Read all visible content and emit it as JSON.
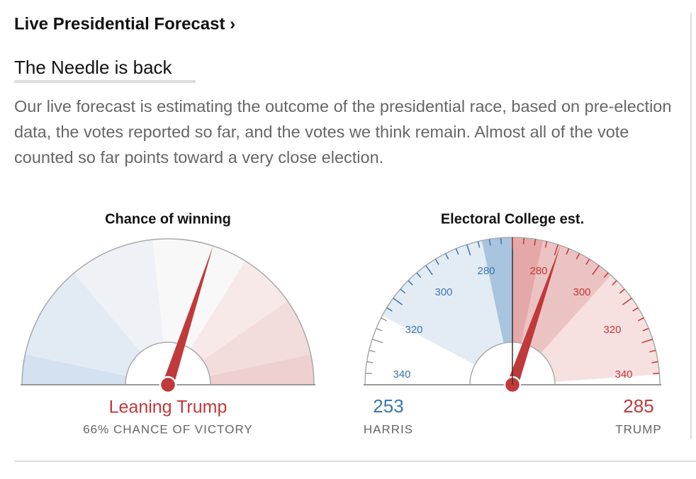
{
  "header": {
    "title": "Live Presidential Forecast ›",
    "subtitle": "The Needle is back"
  },
  "description": "Our live forecast is estimating the outcome of the presidential race, based on pre-election data, the votes reported so far, and the votes we think remain. Almost all of the vote counted so far points toward a very close election.",
  "chance_gauge": {
    "title": "Chance of winning",
    "status": "Leaning Trump",
    "detail": "66% CHANCE OF VICTORY"
  },
  "electoral_gauge": {
    "title": "Electoral College est.",
    "harris_ticks": [
      "280",
      "300",
      "320",
      "340"
    ],
    "trump_ticks": [
      "280",
      "300",
      "320",
      "340"
    ],
    "harris": {
      "value": "253",
      "name": "HARRIS"
    },
    "trump": {
      "value": "285",
      "name": "TRUMP"
    }
  }
}
